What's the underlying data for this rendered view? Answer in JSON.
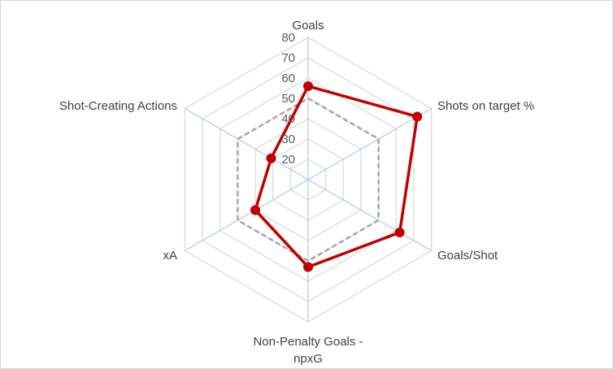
{
  "chart_data": {
    "type": "radar",
    "title": "",
    "categories": [
      "Goals",
      "Shots on target %",
      "Goals/Shot",
      "Non-Penalty Goals - npxG",
      "xA",
      "Shot-Creating Actions"
    ],
    "category_lines": [
      [
        "Goals"
      ],
      [
        "Shots on target %"
      ],
      [
        "Goals/Shot"
      ],
      [
        "Non-Penalty Goals -",
        "npxG"
      ],
      [
        "xA"
      ],
      [
        "Shot-Creating Actions"
      ]
    ],
    "ticks": [
      20,
      30,
      40,
      50,
      60,
      70,
      80
    ],
    "tick_labels": [
      "20",
      "30",
      "40",
      "50",
      "60",
      "70",
      "80"
    ],
    "rlim": [
      10,
      80
    ],
    "series": [
      {
        "values": [
          56,
          72,
          62,
          53,
          40,
          31
        ],
        "color": "#c00000",
        "marker": "circle",
        "style": "solid"
      },
      {
        "values": [
          50,
          50,
          50,
          50,
          50,
          50
        ],
        "color": "#a6a6a6",
        "marker": "none",
        "style": "dashed"
      }
    ],
    "grid": true,
    "legend": "none"
  }
}
